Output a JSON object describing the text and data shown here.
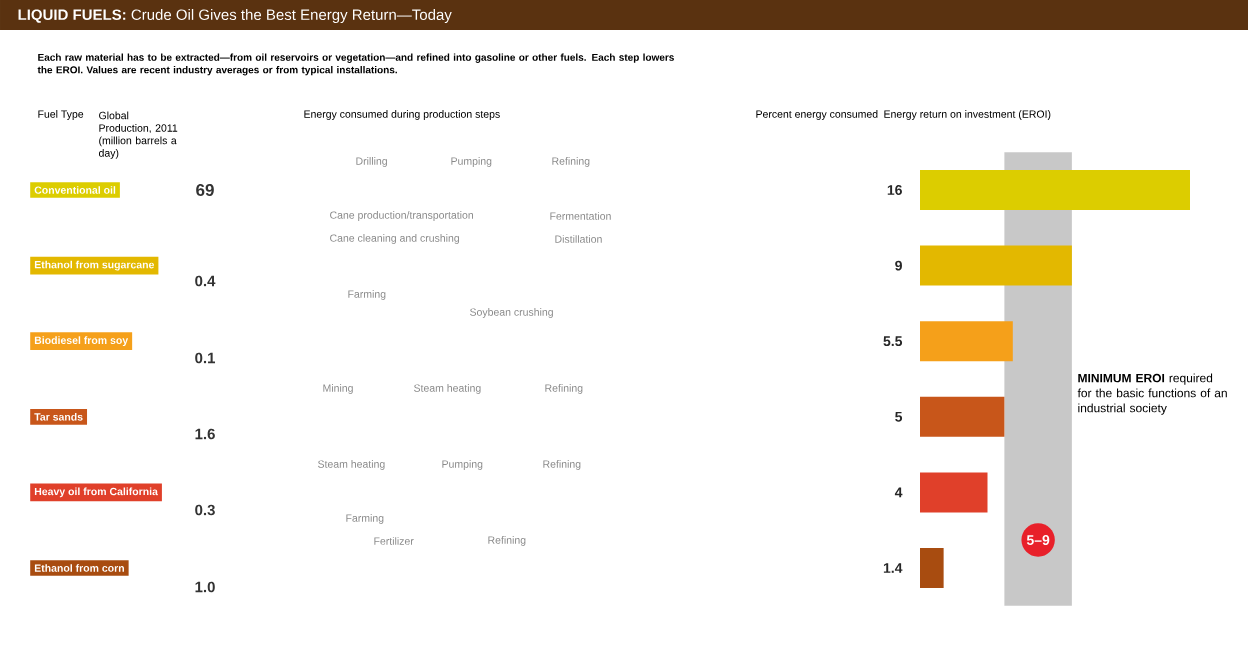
{
  "chart_data": {
    "type": "bar",
    "orientation": "horizontal",
    "title": "**LIQUID FUELS:** Crude Oil Gives the Best Energy Return—Today",
    "subtitle": "Each raw material has to be extracted—from oil reservoirs or vegetation—and refined into gasoline or other fuels. Each step lowers the EROI. Values are recent industry averages or from typical installations.",
    "categories": [
      "Conventional oil",
      "Ethanol from sugarcane",
      "Biodiesel from soy",
      "Tar sands",
      "Heavy oil from California",
      "Ethanol from corn"
    ],
    "values": [
      16,
      9,
      5.5,
      5,
      4,
      1.4
    ],
    "colors": [
      "#dccd00",
      "#e3b800",
      "#f5a01a",
      "#c8561a",
      "#e0402a",
      "#a84c10"
    ],
    "data_labels": true,
    "bands": [
      {
        "axis": "x",
        "from": 5,
        "to": 9,
        "label": "5–9",
        "color": "#c8c8c8"
      }
    ],
    "annotations": [
      "Fuel Type",
      "Global Production, 2011 (million barrels a day)",
      "Energy consumed during production steps",
      "Percent energy consumed",
      "Energy return on investment (EROI)",
      "69",
      "0.4",
      "0.1",
      "1.6",
      "0.3",
      "1.0",
      "Drilling",
      "Pumping",
      "Refining",
      "Cane production/transportation",
      "Cane cleaning and crushing",
      "Fermentation",
      "Distillation",
      "Farming",
      "Soybean crushing",
      "Mining",
      "Steam heating",
      "Refining",
      "Steam heating",
      "Pumping",
      "Refining",
      "Farming",
      "Fertilizer",
      "Refining",
      "**MINIMUM EROI** required for the basic functions of an industrial society"
    ]
  }
}
